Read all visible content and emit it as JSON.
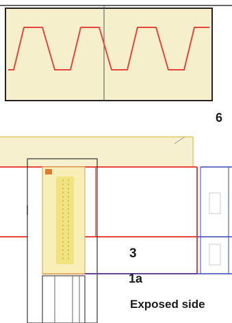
{
  "labels": {
    "layer_number_6": "6",
    "layer_number_3": "3",
    "layer_number_1a": "1a",
    "exposed_side": "Exposed side"
  },
  "colors": {
    "beige_fill": "#f6efcc",
    "profile_red": "#e8453a",
    "frame_dark": "#222222",
    "dim_blue": "#3a44b8",
    "insulation_yellow": "#f2ea96",
    "board_outline": "#d9b25a"
  }
}
